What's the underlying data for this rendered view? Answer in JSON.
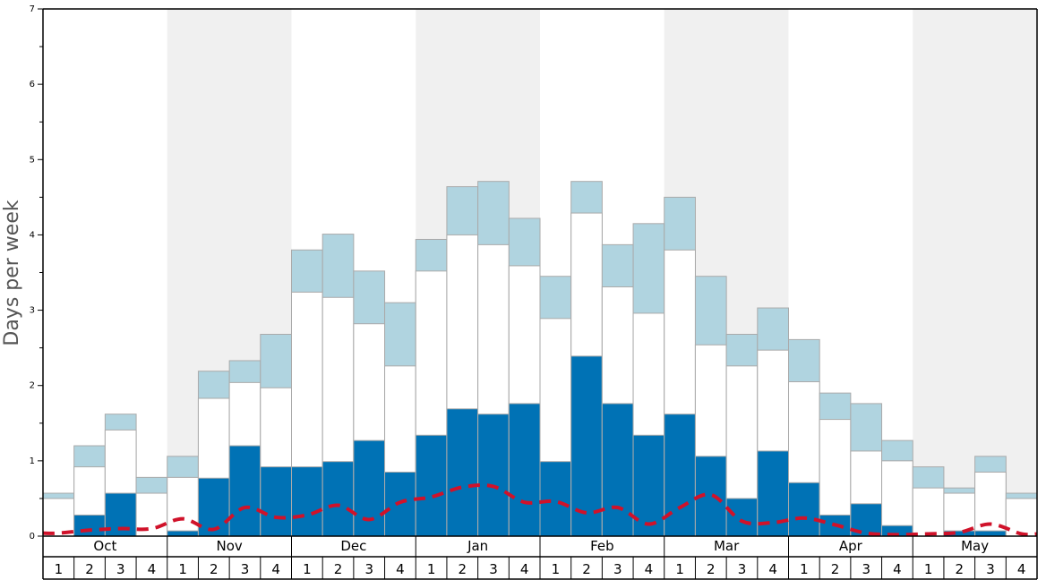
{
  "chart_data": {
    "type": "bar",
    "ylabel": "Days per week",
    "ylim": [
      0,
      7
    ],
    "yticks": [
      "0",
      "1",
      "2",
      "3",
      "4",
      "5",
      "6",
      "7"
    ],
    "months": [
      "Oct",
      "Nov",
      "Dec",
      "Jan",
      "Feb",
      "Mar",
      "Apr",
      "May"
    ],
    "weeks_per_month": [
      "1",
      "2",
      "3",
      "4"
    ],
    "colors": {
      "dark": "#0072b5",
      "light": "#b0d4e0",
      "mid": "#ffffff",
      "line": "#d0122a",
      "shade": "#f0f0f0"
    },
    "series": [
      {
        "values": [
          0,
          0.28,
          0.57,
          0,
          0.07,
          0.77,
          1.2,
          0.92,
          0.92,
          0.99,
          1.27,
          0.85,
          1.34,
          1.69,
          1.62,
          1.76,
          0.99,
          2.39,
          1.76,
          1.34,
          1.62,
          1.06,
          0.5,
          1.13,
          0.71,
          0.28,
          0.43,
          0.14,
          0,
          0.07,
          0.07,
          0
        ]
      },
      {
        "values": [
          0.5,
          0.92,
          1.41,
          0.57,
          0.78,
          1.83,
          2.04,
          1.97,
          3.24,
          3.17,
          2.82,
          2.26,
          3.52,
          4.0,
          3.87,
          3.59,
          2.89,
          4.29,
          3.31,
          2.96,
          3.8,
          2.54,
          2.26,
          2.47,
          2.05,
          1.55,
          1.13,
          1.0,
          0.64,
          0.57,
          0.85,
          0.5
        ]
      },
      {
        "values": [
          0.57,
          1.2,
          1.62,
          0.78,
          1.06,
          2.19,
          2.33,
          2.68,
          3.8,
          4.01,
          3.52,
          3.1,
          3.94,
          4.64,
          4.71,
          4.22,
          3.45,
          4.71,
          3.87,
          4.15,
          4.5,
          3.45,
          2.68,
          3.03,
          2.61,
          1.9,
          1.76,
          1.27,
          0.92,
          0.64,
          1.06,
          0.57
        ]
      },
      {
        "values": [
          0.04,
          0.08,
          0.1,
          0.1,
          0.23,
          0.09,
          0.38,
          0.25,
          0.28,
          0.41,
          0.22,
          0.45,
          0.52,
          0.65,
          0.66,
          0.45,
          0.46,
          0.31,
          0.38,
          0.16,
          0.38,
          0.55,
          0.2,
          0.18,
          0.24,
          0.15,
          0.04,
          0.02,
          0.03,
          0.05,
          0.16,
          0.03
        ]
      }
    ]
  }
}
